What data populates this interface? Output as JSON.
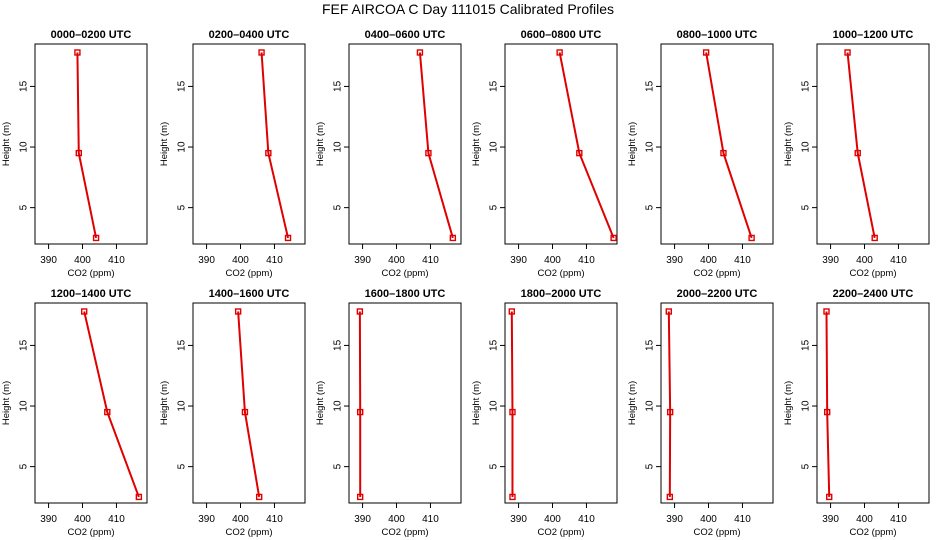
{
  "figure_title": "FEF AIRCOA C  Day 111015  Calibrated Profiles",
  "colors": {
    "line": "#e00000",
    "marker": "#e00000",
    "axis": "#000000"
  },
  "chart_data": [
    {
      "type": "line",
      "title": "0000–0200 UTC",
      "xlabel": "CO2 (ppm)",
      "ylabel": "Height (m)",
      "xlim": [
        386,
        419
      ],
      "ylim": [
        2,
        18.5
      ],
      "xticks": [
        390,
        400,
        410
      ],
      "yticks": [
        5,
        10,
        15
      ],
      "series": [
        {
          "x": [
            404.0,
            398.9,
            398.5
          ],
          "y": [
            2.5,
            9.5,
            17.8
          ]
        }
      ]
    },
    {
      "type": "line",
      "title": "0200–0400 UTC",
      "xlabel": "CO2 (ppm)",
      "ylabel": "Height (m)",
      "xlim": [
        386,
        419
      ],
      "ylim": [
        2,
        18.5
      ],
      "xticks": [
        390,
        400,
        410
      ],
      "yticks": [
        5,
        10,
        15
      ],
      "series": [
        {
          "x": [
            414.0,
            408.2,
            406.2
          ],
          "y": [
            2.5,
            9.5,
            17.8
          ]
        }
      ]
    },
    {
      "type": "line",
      "title": "0400–0600 UTC",
      "xlabel": "CO2 (ppm)",
      "ylabel": "Height (m)",
      "xlim": [
        386,
        419
      ],
      "ylim": [
        2,
        18.5
      ],
      "xticks": [
        390,
        400,
        410
      ],
      "yticks": [
        5,
        10,
        15
      ],
      "series": [
        {
          "x": [
            416.6,
            409.4,
            406.9
          ],
          "y": [
            2.5,
            9.5,
            17.8
          ]
        }
      ]
    },
    {
      "type": "line",
      "title": "0600–0800 UTC",
      "xlabel": "CO2 (ppm)",
      "ylabel": "Height (m)",
      "xlim": [
        386,
        419
      ],
      "ylim": [
        2,
        18.5
      ],
      "xticks": [
        390,
        400,
        410
      ],
      "yticks": [
        5,
        10,
        15
      ],
      "series": [
        {
          "x": [
            418.0,
            407.9,
            402.1
          ],
          "y": [
            2.5,
            9.5,
            17.8
          ]
        }
      ]
    },
    {
      "type": "line",
      "title": "0800–1000 UTC",
      "xlabel": "CO2 (ppm)",
      "ylabel": "Height (m)",
      "xlim": [
        386,
        419
      ],
      "ylim": [
        2,
        18.5
      ],
      "xticks": [
        390,
        400,
        410
      ],
      "yticks": [
        5,
        10,
        15
      ],
      "series": [
        {
          "x": [
            412.7,
            404.4,
            399.3
          ],
          "y": [
            2.5,
            9.5,
            17.8
          ]
        }
      ]
    },
    {
      "type": "line",
      "title": "1000–1200 UTC",
      "xlabel": "CO2 (ppm)",
      "ylabel": "Height (m)",
      "xlim": [
        386,
        419
      ],
      "ylim": [
        2,
        18.5
      ],
      "xticks": [
        390,
        400,
        410
      ],
      "yticks": [
        5,
        10,
        15
      ],
      "series": [
        {
          "x": [
            403.0,
            398.0,
            395.0
          ],
          "y": [
            2.5,
            9.5,
            17.8
          ]
        }
      ]
    },
    {
      "type": "line",
      "title": "1200–1400 UTC",
      "xlabel": "CO2 (ppm)",
      "ylabel": "Height (m)",
      "xlim": [
        386,
        419
      ],
      "ylim": [
        2,
        18.5
      ],
      "xticks": [
        390,
        400,
        410
      ],
      "yticks": [
        5,
        10,
        15
      ],
      "series": [
        {
          "x": [
            416.6,
            407.3,
            400.5
          ],
          "y": [
            2.5,
            9.5,
            17.8
          ]
        }
      ]
    },
    {
      "type": "line",
      "title": "1400–1600 UTC",
      "xlabel": "CO2 (ppm)",
      "ylabel": "Height (m)",
      "xlim": [
        386,
        419
      ],
      "ylim": [
        2,
        18.5
      ],
      "xticks": [
        390,
        400,
        410
      ],
      "yticks": [
        5,
        10,
        15
      ],
      "series": [
        {
          "x": [
            405.5,
            401.3,
            399.3
          ],
          "y": [
            2.5,
            9.5,
            17.8
          ]
        }
      ]
    },
    {
      "type": "line",
      "title": "1600–1800 UTC",
      "xlabel": "CO2 (ppm)",
      "ylabel": "Height (m)",
      "xlim": [
        386,
        419
      ],
      "ylim": [
        2,
        18.5
      ],
      "xticks": [
        390,
        400,
        410
      ],
      "yticks": [
        5,
        10,
        15
      ],
      "series": [
        {
          "x": [
            389.3,
            389.3,
            389.2
          ],
          "y": [
            2.5,
            9.5,
            17.8
          ]
        }
      ]
    },
    {
      "type": "line",
      "title": "1800–2000 UTC",
      "xlabel": "CO2 (ppm)",
      "ylabel": "Height (m)",
      "xlim": [
        386,
        419
      ],
      "ylim": [
        2,
        18.5
      ],
      "xticks": [
        390,
        400,
        410
      ],
      "yticks": [
        5,
        10,
        15
      ],
      "series": [
        {
          "x": [
            388.2,
            388.2,
            388.0
          ],
          "y": [
            2.5,
            9.5,
            17.8
          ]
        }
      ]
    },
    {
      "type": "line",
      "title": "2000–2200 UTC",
      "xlabel": "CO2 (ppm)",
      "ylabel": "Height (m)",
      "xlim": [
        386,
        419
      ],
      "ylim": [
        2,
        18.5
      ],
      "xticks": [
        390,
        400,
        410
      ],
      "yticks": [
        5,
        10,
        15
      ],
      "series": [
        {
          "x": [
            388.6,
            388.7,
            388.3
          ],
          "y": [
            2.5,
            9.5,
            17.8
          ]
        }
      ]
    },
    {
      "type": "line",
      "title": "2200–2400 UTC",
      "xlabel": "CO2 (ppm)",
      "ylabel": "Height (m)",
      "xlim": [
        386,
        419
      ],
      "ylim": [
        2,
        18.5
      ],
      "xticks": [
        390,
        400,
        410
      ],
      "yticks": [
        5,
        10,
        15
      ],
      "series": [
        {
          "x": [
            389.6,
            389.0,
            388.8
          ],
          "y": [
            2.5,
            9.5,
            17.8
          ]
        }
      ]
    }
  ]
}
